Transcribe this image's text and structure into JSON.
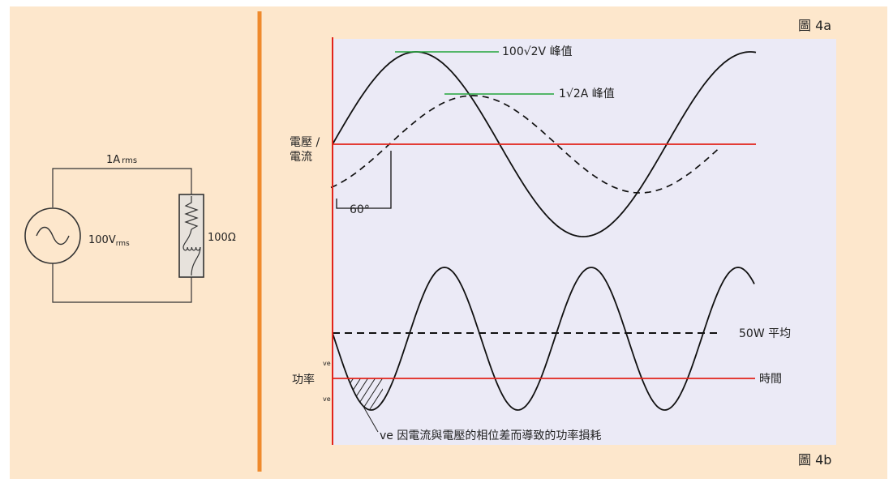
{
  "circuit": {
    "current_label": "1A",
    "current_sub": "rms",
    "voltage_label": "100V",
    "voltage_sub": "rms",
    "resistance_label": "100Ω"
  },
  "figure_a": {
    "tag": "圖 4a",
    "y_label_line1": "電壓 /",
    "y_label_line2": "電流",
    "voltage_peak_label": "100√2V 峰值",
    "current_peak_label": "1√2A 峰值",
    "phase_label": "60°"
  },
  "figure_b": {
    "tag": "圖 4b",
    "y_label": "功率",
    "plus_mark": "ve",
    "minus_mark": "ve",
    "average_label": "50W 平均",
    "time_label": "時間",
    "loss_label": "ve 因電流與電壓的相位差而導致的功率損耗"
  },
  "colors": {
    "background": "#fde7cc",
    "plot_bg": "#ebeaf6",
    "divider": "#ef8a2c",
    "axis": "#e2231a",
    "peak_marker": "#22a53a",
    "curve": "#111111"
  }
}
